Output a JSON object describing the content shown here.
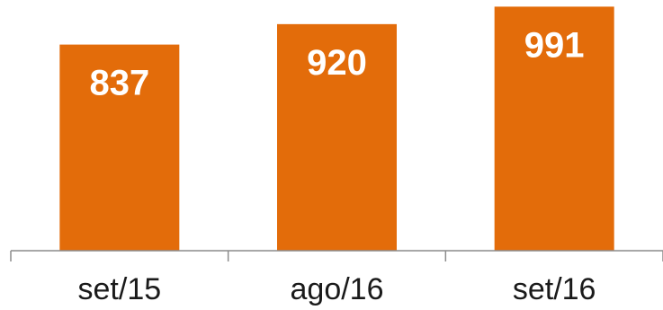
{
  "chart_data": {
    "type": "bar",
    "categories": [
      "set/15",
      "ago/16",
      "set/16"
    ],
    "values": [
      837,
      920,
      991
    ],
    "data_labels": [
      "837",
      "920",
      "991"
    ],
    "title": "",
    "xlabel": "",
    "ylabel": "",
    "bar_color": "#E36C0A",
    "grid": false,
    "legend": "none"
  }
}
